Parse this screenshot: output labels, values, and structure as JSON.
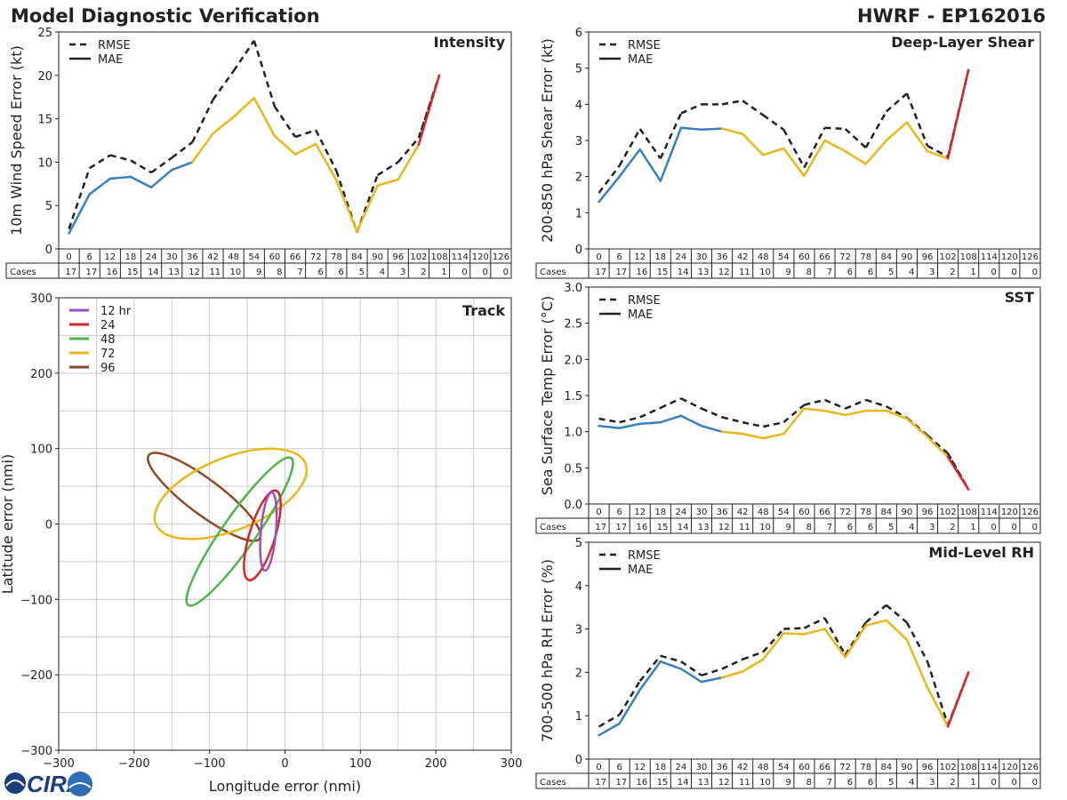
{
  "header": {
    "left_title": "Model Diagnostic Verification",
    "right_title": "HWRF - EP162016"
  },
  "logo": {
    "text": "CIRA"
  },
  "colors": {
    "blue": "#3a7fbd",
    "yellow": "#e8b71a",
    "red": "#d62728",
    "black": "#222222",
    "purple": "#9b4fc0",
    "green": "#4fb54a",
    "brown": "#8b4a25",
    "grid": "#cccccc"
  },
  "chart_data": [
    {
      "id": "intensity",
      "type": "line",
      "title": "Intensity",
      "ylabel": "10m Wind Speed Error (kt)",
      "ylim": [
        0,
        25
      ],
      "yticks": [
        0,
        5,
        10,
        15,
        20,
        25
      ],
      "x": [
        0,
        6,
        12,
        18,
        24,
        30,
        36,
        42,
        48,
        54,
        60,
        66,
        72,
        78,
        84,
        90,
        96,
        102,
        108
      ],
      "series": [
        {
          "name": "RMSE",
          "style": "dashed",
          "values": [
            2.3,
            9.3,
            10.8,
            10.2,
            8.8,
            10.5,
            12.3,
            17.2,
            20.5,
            24.0,
            16.4,
            12.9,
            13.7,
            9.0,
            1.9,
            8.5,
            10.0,
            12.8,
            20.0
          ]
        },
        {
          "name": "MAE",
          "style": "solid",
          "values": [
            1.8,
            6.3,
            8.1,
            8.3,
            7.1,
            9.1,
            10.0,
            13.3,
            15.2,
            17.4,
            13.0,
            10.9,
            12.1,
            7.9,
            2.0,
            7.3,
            8.0,
            12.0,
            20.0
          ]
        }
      ],
      "cases_label": "Cases",
      "table_hours": [
        "0",
        "6",
        "12",
        "18",
        "24",
        "30",
        "36",
        "42",
        "48",
        "54",
        "60",
        "66",
        "72",
        "78",
        "84",
        "90",
        "96",
        "102",
        "108",
        "114",
        "120",
        "126"
      ],
      "table_cases": [
        "17",
        "17",
        "16",
        "15",
        "14",
        "13",
        "12",
        "11",
        "10",
        "9",
        "8",
        "7",
        "6",
        "6",
        "5",
        "4",
        "3",
        "2",
        "1",
        "0",
        "0",
        "0"
      ]
    },
    {
      "id": "shear",
      "type": "line",
      "title": "Deep-Layer Shear",
      "ylabel": "200-850 hPa Shear Error (kt)",
      "ylim": [
        0,
        6
      ],
      "yticks": [
        0,
        1,
        2,
        3,
        4,
        5,
        6
      ],
      "x": [
        0,
        6,
        12,
        18,
        24,
        30,
        36,
        42,
        48,
        54,
        60,
        66,
        72,
        78,
        84,
        90,
        96,
        102,
        108
      ],
      "series": [
        {
          "name": "RMSE",
          "style": "dashed",
          "values": [
            1.55,
            2.3,
            3.32,
            2.5,
            3.75,
            4.0,
            4.0,
            4.1,
            3.7,
            3.3,
            2.25,
            3.35,
            3.32,
            2.8,
            3.8,
            4.3,
            2.85,
            2.55,
            4.95
          ]
        },
        {
          "name": "MAE",
          "style": "solid",
          "values": [
            1.3,
            2.0,
            2.75,
            1.88,
            3.35,
            3.3,
            3.33,
            3.18,
            2.6,
            2.78,
            2.02,
            3.0,
            2.7,
            2.35,
            3.0,
            3.5,
            2.7,
            2.5,
            4.95
          ]
        }
      ],
      "cases_label": "Cases",
      "table_hours": [
        "0",
        "6",
        "12",
        "18",
        "24",
        "30",
        "36",
        "42",
        "48",
        "54",
        "60",
        "66",
        "72",
        "78",
        "84",
        "90",
        "96",
        "102",
        "108",
        "114",
        "120",
        "126"
      ],
      "table_cases": [
        "17",
        "17",
        "16",
        "15",
        "14",
        "13",
        "12",
        "11",
        "10",
        "9",
        "8",
        "7",
        "6",
        "6",
        "5",
        "4",
        "3",
        "2",
        "1",
        "0",
        "0",
        "0"
      ]
    },
    {
      "id": "track",
      "type": "scatter",
      "title": "Track",
      "xlabel": "Longitude error (nmi)",
      "ylabel": "Latitude error (nmi)",
      "xlim": [
        -300,
        300
      ],
      "ylim": [
        -300,
        300
      ],
      "xticks": [
        -300,
        -200,
        -100,
        0,
        100,
        200,
        300
      ],
      "yticks": [
        -300,
        -200,
        -100,
        0,
        100,
        200,
        300
      ],
      "tick_labels_x": [
        "−300",
        "−200",
        "−100",
        "0",
        "100",
        "200",
        "300"
      ],
      "tick_labels_y": [
        "−300",
        "−200",
        "−100",
        "0",
        "100",
        "200",
        "300"
      ],
      "grid": true,
      "ellipses": [
        {
          "name": "12 hr",
          "color": "purple",
          "cx": -22,
          "cy": -10,
          "rx": 52,
          "ry": 10,
          "angle_deg": 85
        },
        {
          "name": "24",
          "color": "red",
          "cx": -30,
          "cy": -15,
          "rx": 62,
          "ry": 17,
          "angle_deg": 73
        },
        {
          "name": "48",
          "color": "green",
          "cx": -60,
          "cy": -10,
          "rx": 119,
          "ry": 22,
          "angle_deg": 55
        },
        {
          "name": "72",
          "color": "yellow",
          "cx": -72,
          "cy": 40,
          "rx": 107,
          "ry": 48,
          "angle_deg": 22
        },
        {
          "name": "96",
          "color": "brown",
          "cx": -107,
          "cy": 36,
          "rx": 92,
          "ry": 23,
          "angle_deg": -37
        }
      ]
    },
    {
      "id": "sst",
      "type": "line",
      "title": "SST",
      "ylabel": "Sea Surface Temp Error (°C)",
      "ylim": [
        0,
        3
      ],
      "yticks": [
        0,
        0.5,
        1,
        1.5,
        2,
        2.5,
        3
      ],
      "ytick_labels": [
        "0.0",
        "0.5",
        "1.0",
        "1.5",
        "2.0",
        "2.5",
        "3.0"
      ],
      "x": [
        0,
        6,
        12,
        18,
        24,
        30,
        36,
        42,
        48,
        54,
        60,
        66,
        72,
        78,
        84,
        90,
        96,
        102,
        108
      ],
      "series": [
        {
          "name": "RMSE",
          "style": "dashed",
          "values": [
            1.18,
            1.13,
            1.2,
            1.33,
            1.46,
            1.32,
            1.2,
            1.13,
            1.07,
            1.13,
            1.37,
            1.44,
            1.32,
            1.44,
            1.35,
            1.19,
            0.95,
            0.7,
            0.2
          ]
        },
        {
          "name": "MAE",
          "style": "solid",
          "values": [
            1.08,
            1.05,
            1.11,
            1.13,
            1.22,
            1.08,
            1.0,
            0.97,
            0.91,
            0.97,
            1.32,
            1.29,
            1.23,
            1.29,
            1.29,
            1.18,
            0.93,
            0.65,
            0.2
          ]
        }
      ],
      "cases_label": "Cases",
      "table_hours": [
        "0",
        "6",
        "12",
        "18",
        "24",
        "30",
        "36",
        "42",
        "48",
        "54",
        "60",
        "66",
        "72",
        "78",
        "84",
        "90",
        "96",
        "102",
        "108",
        "114",
        "120",
        "126"
      ],
      "table_cases": [
        "17",
        "17",
        "16",
        "15",
        "14",
        "13",
        "12",
        "11",
        "10",
        "9",
        "8",
        "7",
        "6",
        "6",
        "5",
        "4",
        "3",
        "2",
        "1",
        "0",
        "0",
        "0"
      ]
    },
    {
      "id": "rh",
      "type": "line",
      "title": "Mid-Level RH",
      "ylabel": "700-500 hPa RH Error (%)",
      "ylim": [
        0,
        5
      ],
      "yticks": [
        0,
        1,
        2,
        3,
        4,
        5
      ],
      "x": [
        0,
        6,
        12,
        18,
        24,
        30,
        36,
        42,
        48,
        54,
        60,
        66,
        72,
        78,
        84,
        90,
        96,
        102,
        108
      ],
      "series": [
        {
          "name": "RMSE",
          "style": "dashed",
          "values": [
            0.75,
            1.02,
            1.8,
            2.38,
            2.25,
            1.93,
            2.08,
            2.3,
            2.47,
            3.0,
            3.02,
            3.25,
            2.4,
            3.15,
            3.55,
            3.15,
            2.25,
            0.78,
            2.0
          ]
        },
        {
          "name": "MAE",
          "style": "solid",
          "values": [
            0.55,
            0.82,
            1.6,
            2.25,
            2.08,
            1.78,
            1.88,
            2.02,
            2.3,
            2.9,
            2.88,
            3.0,
            2.35,
            3.08,
            3.2,
            2.75,
            1.65,
            0.75,
            2.0
          ]
        }
      ],
      "cases_label": "Cases",
      "table_hours": [
        "0",
        "6",
        "12",
        "18",
        "24",
        "30",
        "36",
        "42",
        "48",
        "54",
        "60",
        "66",
        "72",
        "78",
        "84",
        "90",
        "96",
        "102",
        "108",
        "114",
        "120",
        "126"
      ],
      "table_cases": [
        "17",
        "17",
        "16",
        "15",
        "14",
        "13",
        "12",
        "11",
        "10",
        "9",
        "8",
        "7",
        "6",
        "6",
        "5",
        "4",
        "3",
        "2",
        "1",
        "0",
        "0",
        "0"
      ]
    }
  ]
}
